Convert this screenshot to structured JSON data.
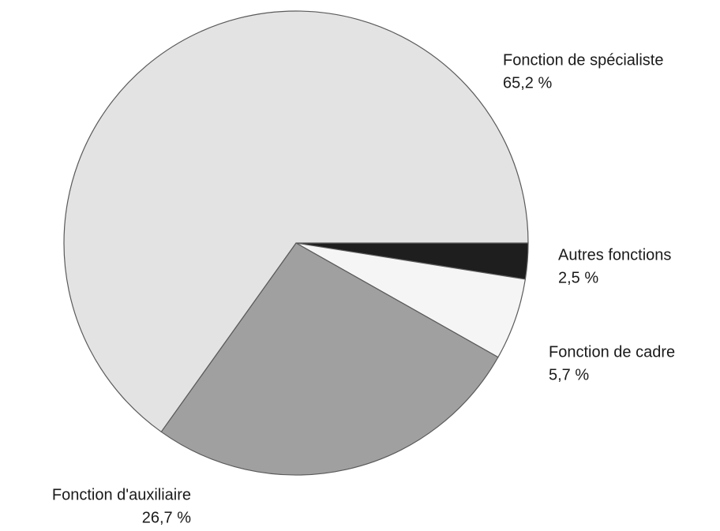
{
  "chart_data": {
    "type": "pie",
    "categories": [
      "Autres fonctions",
      "Fonction de cadre",
      "Fonction d'auxiliaire",
      "Fonction de spécialiste"
    ],
    "values": [
      2.5,
      5.7,
      26.7,
      65.2
    ],
    "value_labels": [
      "2,5 %",
      "5,7 %",
      "26,7 %",
      "65,2 %"
    ],
    "colors": [
      "#1e1e1e",
      "#f5f5f5",
      "#a0a0a0",
      "#e3e3e3"
    ]
  }
}
